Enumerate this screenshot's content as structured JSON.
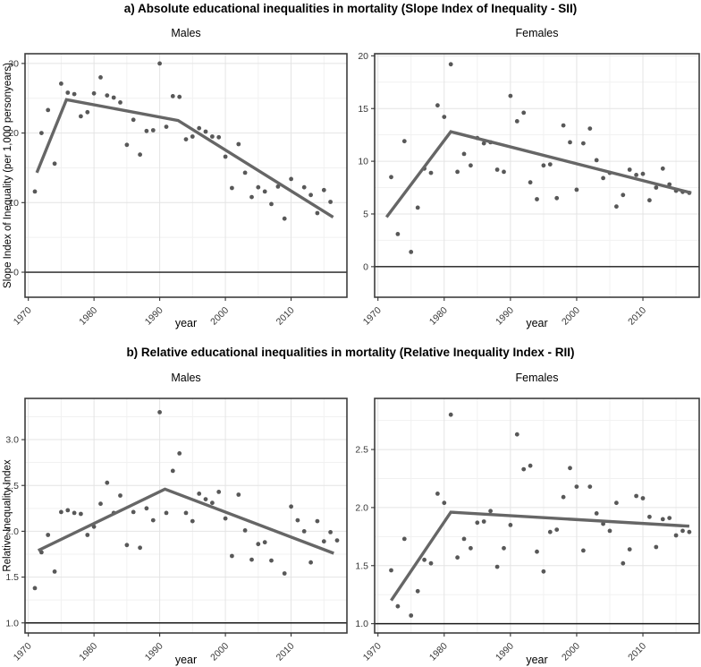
{
  "figure": {
    "section_a_title": "a) Absolute educational inequalities in mortality (Slope Index of Inequality - SII)",
    "section_b_title": "b) Relative educational inequalities in mortality (Relative Inequality Index - RII)"
  },
  "chart_data": [
    {
      "id": "sii-males",
      "section": "a",
      "title": "Males",
      "type": "scatter",
      "xlabel": "year",
      "ylabel": "Slope Index of Inequality (per 1,000 personyears)",
      "legend": "none",
      "grid": "on",
      "xlim": [
        1969.5,
        2018.5
      ],
      "ylim": [
        -3.6,
        31.4
      ],
      "xticks": [
        [
          1970,
          "1970"
        ],
        [
          1980,
          "1980"
        ],
        [
          1990,
          "1990"
        ],
        [
          2000,
          "2000"
        ],
        [
          2010,
          "2010"
        ]
      ],
      "xticks_minor": [
        1975,
        1985,
        1995,
        2005,
        2015
      ],
      "yticks": [
        [
          0,
          "0"
        ],
        [
          10,
          "10"
        ],
        [
          20,
          "20"
        ],
        [
          30,
          "30"
        ]
      ],
      "yticks_minor": [
        5,
        15,
        25
      ],
      "refline_y": 0,
      "points": [
        [
          1971,
          11.6
        ],
        [
          1972,
          20.0
        ],
        [
          1973,
          23.3
        ],
        [
          1974,
          15.6
        ],
        [
          1975,
          27.1
        ],
        [
          1976,
          25.8
        ],
        [
          1977,
          25.6
        ],
        [
          1978,
          22.4
        ],
        [
          1979,
          23.0
        ],
        [
          1980,
          25.7
        ],
        [
          1981,
          28.0
        ],
        [
          1982,
          25.4
        ],
        [
          1983,
          25.1
        ],
        [
          1984,
          24.4
        ],
        [
          1985,
          18.3
        ],
        [
          1986,
          21.9
        ],
        [
          1987,
          16.9
        ],
        [
          1988,
          20.3
        ],
        [
          1989,
          20.4
        ],
        [
          1990,
          30.0
        ],
        [
          1991,
          20.9
        ],
        [
          1992,
          25.3
        ],
        [
          1993,
          25.2
        ],
        [
          1994,
          19.1
        ],
        [
          1995,
          19.5
        ],
        [
          1996,
          20.7
        ],
        [
          1997,
          20.2
        ],
        [
          1998,
          19.5
        ],
        [
          1999,
          19.4
        ],
        [
          2000,
          16.6
        ],
        [
          2001,
          12.1
        ],
        [
          2002,
          18.4
        ],
        [
          2003,
          14.3
        ],
        [
          2004,
          10.8
        ],
        [
          2005,
          12.2
        ],
        [
          2006,
          11.6
        ],
        [
          2007,
          9.8
        ],
        [
          2008,
          12.3
        ],
        [
          2009,
          7.7
        ],
        [
          2010,
          13.4
        ],
        [
          2012,
          12.2
        ],
        [
          2013,
          11.1
        ],
        [
          2014,
          8.5
        ],
        [
          2015,
          11.8
        ],
        [
          2016,
          10.1
        ]
      ],
      "trend": [
        [
          1971.3,
          14.3
        ],
        [
          1975.8,
          24.8
        ],
        [
          1992.8,
          21.8
        ],
        [
          2016.4,
          7.9
        ]
      ]
    },
    {
      "id": "sii-females",
      "section": "a",
      "title": "Females",
      "type": "scatter",
      "xlabel": "year",
      "ylabel": "Slope Index of Inequality (per 1,000 personyears)",
      "legend": "none",
      "grid": "on",
      "xlim": [
        1969.5,
        2018.5
      ],
      "ylim": [
        -2.9,
        20.2
      ],
      "xticks": [
        [
          1970,
          "1970"
        ],
        [
          1980,
          "1980"
        ],
        [
          1990,
          "1990"
        ],
        [
          2000,
          "2000"
        ],
        [
          2010,
          "2010"
        ]
      ],
      "xticks_minor": [
        1975,
        1985,
        1995,
        2005,
        2015
      ],
      "yticks": [
        [
          0,
          "0"
        ],
        [
          5,
          "5"
        ],
        [
          10,
          "10"
        ],
        [
          15,
          "15"
        ],
        [
          20,
          "20"
        ]
      ],
      "yticks_minor": [
        2.5,
        7.5,
        12.5,
        17.5
      ],
      "refline_y": 0,
      "points": [
        [
          1972,
          8.5
        ],
        [
          1973,
          3.1
        ],
        [
          1974,
          11.9
        ],
        [
          1975,
          1.4
        ],
        [
          1976,
          5.6
        ],
        [
          1977,
          9.3
        ],
        [
          1978,
          8.9
        ],
        [
          1979,
          15.3
        ],
        [
          1980,
          14.2
        ],
        [
          1981,
          19.2
        ],
        [
          1982,
          9.0
        ],
        [
          1983,
          10.7
        ],
        [
          1984,
          9.6
        ],
        [
          1985,
          12.2
        ],
        [
          1986,
          11.7
        ],
        [
          1987,
          11.8
        ],
        [
          1988,
          9.2
        ],
        [
          1989,
          9.0
        ],
        [
          1990,
          16.2
        ],
        [
          1991,
          13.8
        ],
        [
          1992,
          14.6
        ],
        [
          1993,
          8.0
        ],
        [
          1994,
          6.4
        ],
        [
          1995,
          9.6
        ],
        [
          1996,
          9.7
        ],
        [
          1997,
          6.5
        ],
        [
          1998,
          13.4
        ],
        [
          1999,
          11.8
        ],
        [
          2000,
          7.3
        ],
        [
          2001,
          11.7
        ],
        [
          2002,
          13.1
        ],
        [
          2003,
          10.1
        ],
        [
          2004,
          8.4
        ],
        [
          2005,
          8.9
        ],
        [
          2006,
          5.7
        ],
        [
          2007,
          6.8
        ],
        [
          2008,
          9.2
        ],
        [
          2009,
          8.7
        ],
        [
          2010,
          8.8
        ],
        [
          2011,
          6.3
        ],
        [
          2012,
          7.5
        ],
        [
          2013,
          9.3
        ],
        [
          2014,
          7.8
        ],
        [
          2015,
          7.2
        ],
        [
          2016,
          7.1
        ],
        [
          2017,
          7.0
        ]
      ],
      "trend": [
        [
          1971.3,
          4.7
        ],
        [
          1981,
          12.8
        ],
        [
          2017.3,
          7.0
        ]
      ]
    },
    {
      "id": "rii-males",
      "section": "b",
      "title": "Males",
      "type": "scatter",
      "xlabel": "year",
      "ylabel": "Relative Inequality Index",
      "legend": "none",
      "grid": "on",
      "xlim": [
        1969.5,
        2018.5
      ],
      "ylim": [
        0.89,
        3.45
      ],
      "xticks": [
        [
          1970,
          "1970"
        ],
        [
          1980,
          "1980"
        ],
        [
          1990,
          "1990"
        ],
        [
          2000,
          "2000"
        ],
        [
          2010,
          "2010"
        ]
      ],
      "xticks_minor": [
        1975,
        1985,
        1995,
        2005,
        2015
      ],
      "yticks": [
        [
          1.0,
          "1.0"
        ],
        [
          1.5,
          "1.5"
        ],
        [
          2.0,
          "2.0"
        ],
        [
          2.5,
          "2.5"
        ],
        [
          3.0,
          "3.0"
        ]
      ],
      "yticks_minor": [
        1.25,
        1.75,
        2.25,
        2.75,
        3.25
      ],
      "refline_y": 1,
      "points": [
        [
          1971,
          1.38
        ],
        [
          1972,
          1.77
        ],
        [
          1973,
          1.96
        ],
        [
          1974,
          1.56
        ],
        [
          1975,
          2.21
        ],
        [
          1976,
          2.23
        ],
        [
          1977,
          2.2
        ],
        [
          1978,
          2.19
        ],
        [
          1979,
          1.96
        ],
        [
          1980,
          2.05
        ],
        [
          1981,
          2.3
        ],
        [
          1982,
          2.53
        ],
        [
          1983,
          2.2
        ],
        [
          1984,
          2.39
        ],
        [
          1985,
          1.85
        ],
        [
          1986,
          2.21
        ],
        [
          1987,
          1.82
        ],
        [
          1988,
          2.25
        ],
        [
          1989,
          2.12
        ],
        [
          1990,
          3.3
        ],
        [
          1991,
          2.2
        ],
        [
          1992,
          2.66
        ],
        [
          1993,
          2.85
        ],
        [
          1994,
          2.2
        ],
        [
          1995,
          2.11
        ],
        [
          1996,
          2.41
        ],
        [
          1997,
          2.35
        ],
        [
          1998,
          2.31
        ],
        [
          1999,
          2.43
        ],
        [
          2000,
          2.14
        ],
        [
          2001,
          1.73
        ],
        [
          2002,
          2.4
        ],
        [
          2003,
          2.01
        ],
        [
          2004,
          1.69
        ],
        [
          2005,
          1.86
        ],
        [
          2006,
          1.88
        ],
        [
          2007,
          1.68
        ],
        [
          2009,
          1.54
        ],
        [
          2010,
          2.27
        ],
        [
          2011,
          2.12
        ],
        [
          2012,
          2.0
        ],
        [
          2013,
          1.66
        ],
        [
          2014,
          2.11
        ],
        [
          2015,
          1.89
        ],
        [
          2016,
          1.99
        ],
        [
          2017,
          1.9
        ]
      ],
      "trend": [
        [
          1971.5,
          1.79
        ],
        [
          1990.8,
          2.46
        ],
        [
          2016.5,
          1.76
        ]
      ]
    },
    {
      "id": "rii-females",
      "section": "b",
      "title": "Females",
      "type": "scatter",
      "xlabel": "year",
      "ylabel": "Relative Inequality Index",
      "legend": "none",
      "grid": "on",
      "xlim": [
        1969.5,
        2018.5
      ],
      "ylim": [
        0.92,
        2.94
      ],
      "xticks": [
        [
          1970,
          "1970"
        ],
        [
          1980,
          "1980"
        ],
        [
          1990,
          "1990"
        ],
        [
          2000,
          "2000"
        ],
        [
          2010,
          "2010"
        ]
      ],
      "xticks_minor": [
        1975,
        1985,
        1995,
        2005,
        2015
      ],
      "yticks": [
        [
          1.0,
          "1.0"
        ],
        [
          1.5,
          "1.5"
        ],
        [
          2.0,
          "2.0"
        ],
        [
          2.5,
          "2.5"
        ]
      ],
      "yticks_minor": [
        1.25,
        1.75,
        2.25,
        2.75
      ],
      "refline_y": 1,
      "points": [
        [
          1972,
          1.46
        ],
        [
          1973,
          1.15
        ],
        [
          1974,
          1.73
        ],
        [
          1975,
          1.07
        ],
        [
          1976,
          1.28
        ],
        [
          1977,
          1.55
        ],
        [
          1978,
          1.52
        ],
        [
          1979,
          2.12
        ],
        [
          1980,
          2.04
        ],
        [
          1981,
          2.8
        ],
        [
          1982,
          1.57
        ],
        [
          1983,
          1.73
        ],
        [
          1984,
          1.65
        ],
        [
          1985,
          1.87
        ],
        [
          1986,
          1.88
        ],
        [
          1987,
          1.97
        ],
        [
          1988,
          1.49
        ],
        [
          1989,
          1.65
        ],
        [
          1990,
          1.85
        ],
        [
          1991,
          2.63
        ],
        [
          1992,
          2.33
        ],
        [
          1993,
          2.36
        ],
        [
          1994,
          1.62
        ],
        [
          1995,
          1.45
        ],
        [
          1996,
          1.79
        ],
        [
          1997,
          1.81
        ],
        [
          1998,
          2.09
        ],
        [
          1999,
          2.34
        ],
        [
          2000,
          2.18
        ],
        [
          2001,
          1.63
        ],
        [
          2002,
          2.18
        ],
        [
          2003,
          1.95
        ],
        [
          2004,
          1.86
        ],
        [
          2005,
          1.8
        ],
        [
          2006,
          2.04
        ],
        [
          2007,
          1.52
        ],
        [
          2008,
          1.64
        ],
        [
          2009,
          2.1
        ],
        [
          2010,
          2.08
        ],
        [
          2011,
          1.92
        ],
        [
          2012,
          1.66
        ],
        [
          2013,
          1.9
        ],
        [
          2014,
          1.91
        ],
        [
          2015,
          1.76
        ],
        [
          2016,
          1.8
        ],
        [
          2017,
          1.79
        ]
      ],
      "trend": [
        [
          1972,
          1.2
        ],
        [
          1981,
          1.96
        ],
        [
          2017,
          1.84
        ]
      ]
    }
  ],
  "style": {
    "point_color": "#585858",
    "trend_color": "#666666",
    "refline_color": "#1a1a1a",
    "border_color": "#3d3d3d",
    "grid_major_color": "#e4e4e4",
    "grid_minor_color": "#f1f1f1",
    "tick_text_color": "#383838"
  }
}
